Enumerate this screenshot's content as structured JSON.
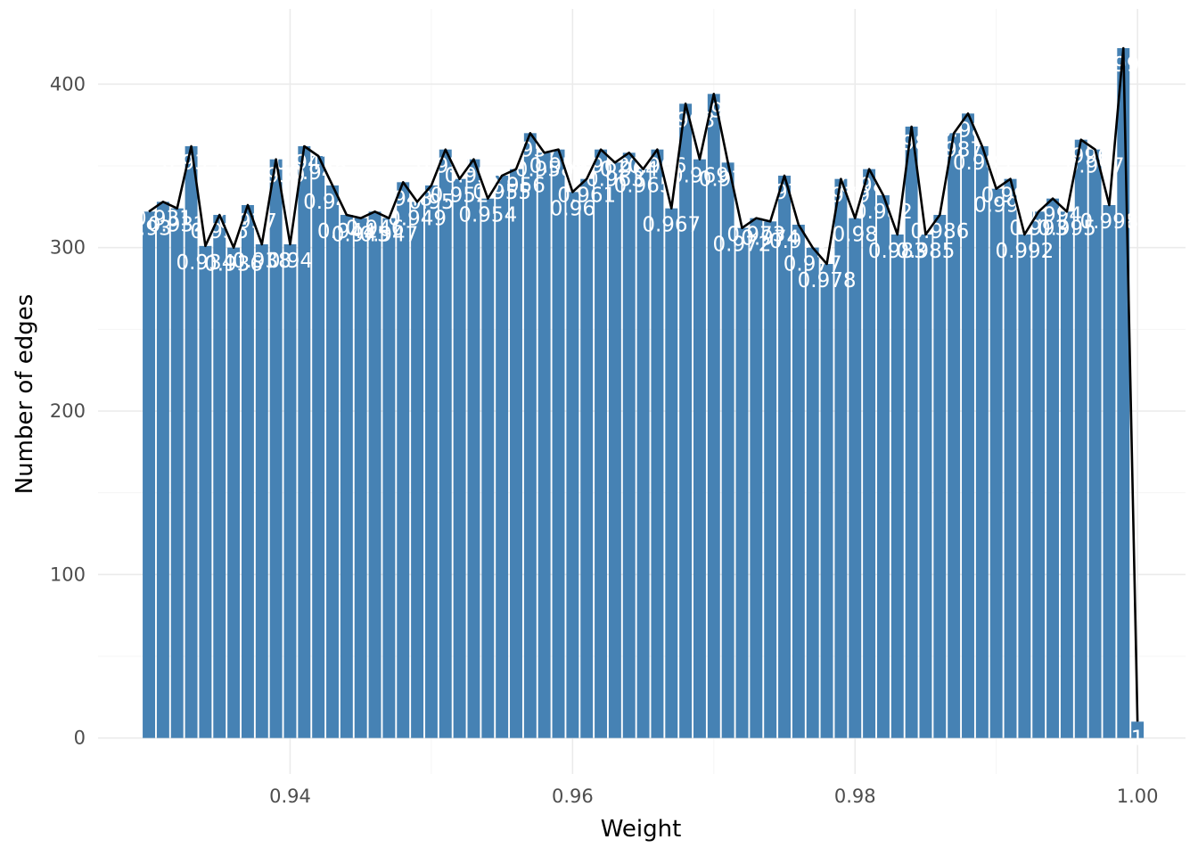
{
  "chart_data": {
    "type": "bar",
    "xlabel": "Weight",
    "ylabel": "Number of edges",
    "x_ticks": [
      "0.94",
      "0.96",
      "0.98",
      "1.00"
    ],
    "x_tick_values": [
      0.94,
      0.96,
      0.98,
      1.0
    ],
    "y_ticks": [
      "0",
      "100",
      "200",
      "300",
      "400"
    ],
    "y_tick_values": [
      0,
      100,
      200,
      300,
      400
    ],
    "xlim": [
      0.9264,
      1.0034
    ],
    "ylim": [
      -22,
      446
    ],
    "grid": true,
    "bar_color": "#4682b4",
    "line_color": "#000000",
    "label_color": "#ffffff",
    "x": [
      0.93,
      0.931,
      0.932,
      0.933,
      0.934,
      0.935,
      0.936,
      0.937,
      0.938,
      0.939,
      0.94,
      0.941,
      0.942,
      0.943,
      0.944,
      0.945,
      0.946,
      0.947,
      0.948,
      0.949,
      0.95,
      0.951,
      0.952,
      0.953,
      0.954,
      0.955,
      0.956,
      0.957,
      0.958,
      0.959,
      0.96,
      0.961,
      0.962,
      0.963,
      0.964,
      0.965,
      0.966,
      0.967,
      0.968,
      0.969,
      0.97,
      0.971,
      0.972,
      0.973,
      0.974,
      0.975,
      0.976,
      0.977,
      0.978,
      0.979,
      0.98,
      0.981,
      0.982,
      0.983,
      0.984,
      0.985,
      0.986,
      0.987,
      0.988,
      0.989,
      0.99,
      0.991,
      0.992,
      0.993,
      0.994,
      0.995,
      0.996,
      0.997,
      0.998,
      0.999,
      1.0
    ],
    "values": [
      322,
      328,
      324,
      362,
      301,
      320,
      300,
      326,
      302,
      354,
      302,
      362,
      356,
      338,
      320,
      318,
      322,
      318,
      340,
      328,
      338,
      360,
      342,
      354,
      330,
      344,
      348,
      370,
      358,
      360,
      334,
      342,
      360,
      352,
      358,
      348,
      360,
      324,
      388,
      354,
      394,
      352,
      312,
      318,
      316,
      344,
      314,
      300,
      290,
      342,
      318,
      348,
      332,
      308,
      374,
      308,
      320,
      370,
      382,
      362,
      336,
      342,
      308,
      322,
      330,
      322,
      366,
      360,
      326,
      422,
      10
    ],
    "bar_labels": [
      "0.93",
      "0.931",
      "0.932",
      "0.933",
      "0.934",
      "0.935",
      "0.936",
      "0.937",
      "0.938",
      "0.939",
      "0.94",
      "0.941",
      "0.942",
      "0.943",
      "0.944",
      "0.945",
      "0.946",
      "0.947",
      "0.948",
      "0.949",
      "0.95",
      "0.951",
      "0.952",
      "0.953",
      "0.954",
      "0.955",
      "0.956",
      "0.957",
      "0.958",
      "0.959",
      "0.96",
      "0.961",
      "0.962",
      "0.963",
      "0.964",
      "0.965",
      "0.966",
      "0.967",
      "0.968",
      "0.969",
      "0.97",
      "0.971",
      "0.972",
      "0.973",
      "0.974",
      "0.975",
      "0.976",
      "0.977",
      "0.978",
      "0.979",
      "0.98",
      "0.981",
      "0.982",
      "0.983",
      "0.984",
      "0.985",
      "0.986",
      "0.987",
      "0.988",
      "0.989",
      "0.99",
      "0.991",
      "0.992",
      "0.993",
      "0.994",
      "0.995",
      "0.996",
      "0.997",
      "0.998",
      "0.999",
      "1"
    ]
  }
}
